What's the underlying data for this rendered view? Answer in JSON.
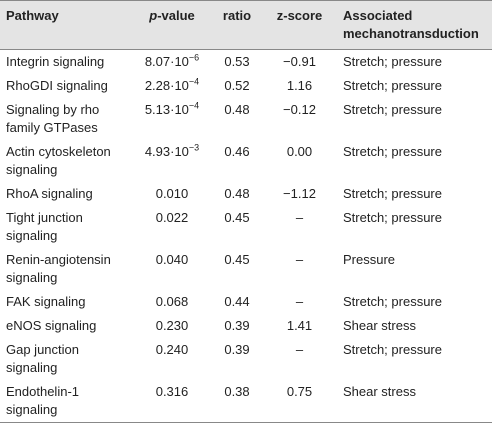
{
  "table": {
    "header": {
      "pathway": "Pathway",
      "p_value": "p-value",
      "ratio": "ratio",
      "z_score": "z-score",
      "mechano": [
        "Associated",
        "mechanotransduction"
      ]
    },
    "rows": [
      {
        "pathway": [
          "Integrin signaling"
        ],
        "p_value": {
          "base": "8.07·10",
          "sup": "−6"
        },
        "ratio": 0.53,
        "z_score": "−0.91",
        "mechano": "Stretch; pressure"
      },
      {
        "pathway": [
          "RhoGDI signaling"
        ],
        "p_value": {
          "base": "2.28·10",
          "sup": "−4"
        },
        "ratio": 0.52,
        "z_score": "1.16",
        "mechano": "Stretch; pressure"
      },
      {
        "pathway": [
          "Signaling by rho",
          "family GTPases"
        ],
        "p_value": {
          "base": "5.13·10",
          "sup": "−4"
        },
        "ratio": 0.48,
        "z_score": "−0.12",
        "mechano": "Stretch; pressure"
      },
      {
        "pathway": [
          "Actin cytoskeleton",
          "signaling"
        ],
        "p_value": {
          "base": "4.93·10",
          "sup": "−3"
        },
        "ratio": 0.46,
        "z_score": "0.00",
        "mechano": "Stretch; pressure"
      },
      {
        "pathway": [
          "RhoA signaling"
        ],
        "p_value": {
          "base": "0.010"
        },
        "ratio": 0.48,
        "z_score": "−1.12",
        "mechano": "Stretch; pressure"
      },
      {
        "pathway": [
          "Tight junction",
          "signaling"
        ],
        "p_value": {
          "base": "0.022"
        },
        "ratio": 0.45,
        "z_score": "–",
        "mechano": "Stretch; pressure"
      },
      {
        "pathway": [
          "Renin-angiotensin",
          "signaling"
        ],
        "p_value": {
          "base": "0.040"
        },
        "ratio": 0.45,
        "z_score": "–",
        "mechano": "Pressure"
      },
      {
        "pathway": [
          "FAK signaling"
        ],
        "p_value": {
          "base": "0.068"
        },
        "ratio": 0.44,
        "z_score": "–",
        "mechano": "Stretch; pressure"
      },
      {
        "pathway": [
          "eNOS signaling"
        ],
        "p_value": {
          "base": "0.230"
        },
        "ratio": 0.39,
        "z_score": "1.41",
        "mechano": "Shear stress"
      },
      {
        "pathway": [
          "Gap junction",
          "signaling"
        ],
        "p_value": {
          "base": "0.240"
        },
        "ratio": 0.39,
        "z_score": "–",
        "mechano": "Stretch; pressure"
      },
      {
        "pathway": [
          "Endothelin-1",
          "signaling"
        ],
        "p_value": {
          "base": "0.316"
        },
        "ratio": 0.38,
        "z_score": "0.75",
        "mechano": "Shear stress"
      }
    ]
  }
}
